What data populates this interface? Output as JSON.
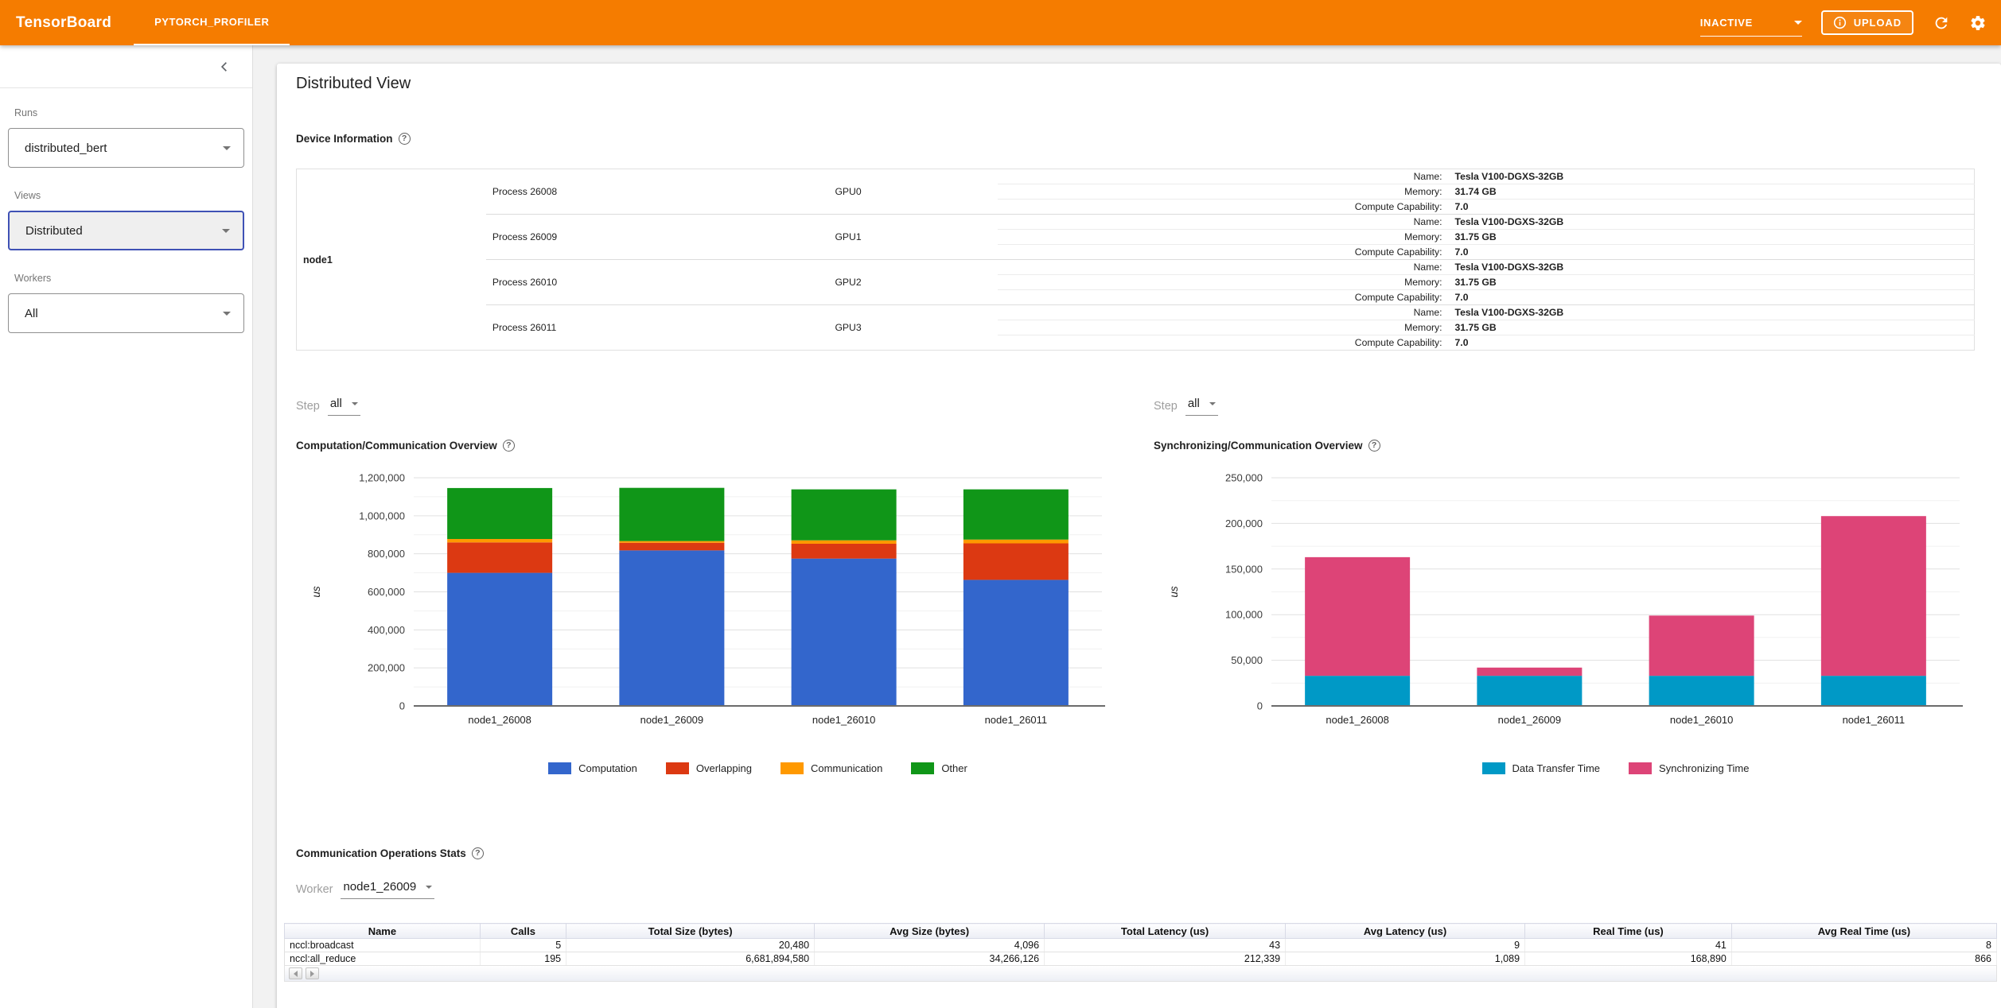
{
  "header": {
    "logo": "TensorBoard",
    "tab": "PYTORCH_PROFILER",
    "status": "INACTIVE",
    "upload_label": "UPLOAD"
  },
  "icons": {
    "help": "?"
  },
  "sidebar": {
    "runs_label": "Runs",
    "runs_value": "distributed_bert",
    "views_label": "Views",
    "views_value": "Distributed",
    "workers_label": "Workers",
    "workers_value": "All"
  },
  "main": {
    "title": "Distributed View",
    "device_info": {
      "heading": "Device Information",
      "node": "node1",
      "field_order": [
        "name",
        "memory",
        "compute_capability"
      ],
      "field_labels": {
        "name": "Name:",
        "memory": "Memory:",
        "compute_capability": "Compute Capability:"
      },
      "gpus": [
        {
          "process": "Process 26008",
          "gpu": "GPU0",
          "name": "Tesla V100-DGXS-32GB",
          "memory": "31.74 GB",
          "compute_capability": "7.0"
        },
        {
          "process": "Process 26009",
          "gpu": "GPU1",
          "name": "Tesla V100-DGXS-32GB",
          "memory": "31.75 GB",
          "compute_capability": "7.0"
        },
        {
          "process": "Process 26010",
          "gpu": "GPU2",
          "name": "Tesla V100-DGXS-32GB",
          "memory": "31.75 GB",
          "compute_capability": "7.0"
        },
        {
          "process": "Process 26011",
          "gpu": "GPU3",
          "name": "Tesla V100-DGXS-32GB",
          "memory": "31.75 GB",
          "compute_capability": "7.0"
        }
      ]
    },
    "step_label": "Step",
    "step_value": "all",
    "comm_ops": {
      "heading": "Communication Operations Stats",
      "worker_label": "Worker",
      "worker_value": "node1_26009",
      "columns": [
        "Name",
        "Calls",
        "Total Size (bytes)",
        "Avg Size (bytes)",
        "Total Latency (us)",
        "Avg Latency (us)",
        "Real Time (us)",
        "Avg Real Time (us)"
      ],
      "rows": [
        [
          "nccl:broadcast",
          "5",
          "20,480",
          "4,096",
          "43",
          "9",
          "41",
          "8"
        ],
        [
          "nccl:all_reduce",
          "195",
          "6,681,894,580",
          "34,266,126",
          "212,339",
          "1,089",
          "168,890",
          "866"
        ]
      ]
    }
  },
  "chart_data": [
    {
      "type": "bar",
      "stacked": true,
      "title": "Computation/Communication Overview",
      "categories": [
        "node1_26008",
        "node1_26009",
        "node1_26010",
        "node1_26011"
      ],
      "series": [
        {
          "name": "Computation",
          "color": "#3366cc",
          "values": [
            700000,
            818000,
            775000,
            663000
          ]
        },
        {
          "name": "Overlapping",
          "color": "#dc3912",
          "values": [
            160000,
            40000,
            78000,
            192000
          ]
        },
        {
          "name": "Communication",
          "color": "#ff9900",
          "values": [
            18000,
            9000,
            18000,
            20000
          ]
        },
        {
          "name": "Other",
          "color": "#109618",
          "values": [
            268000,
            280000,
            268000,
            264000
          ]
        }
      ],
      "xlabel": "",
      "ylabel": "us",
      "ylim": [
        0,
        1200000
      ],
      "ytick_step": 200000,
      "yminor_step": 100000,
      "grid": true,
      "legend_position": "bottom"
    },
    {
      "type": "bar",
      "stacked": true,
      "title": "Synchronizing/Communication Overview",
      "categories": [
        "node1_26008",
        "node1_26009",
        "node1_26010",
        "node1_26011"
      ],
      "series": [
        {
          "name": "Data Transfer Time",
          "color": "#0099c6",
          "values": [
            33000,
            33000,
            33000,
            33000
          ]
        },
        {
          "name": "Synchronizing Time",
          "color": "#dd4477",
          "values": [
            130000,
            9000,
            66000,
            175000
          ]
        }
      ],
      "xlabel": "",
      "ylabel": "us",
      "ylim": [
        0,
        250000
      ],
      "ytick_step": 50000,
      "yminor_step": 25000,
      "grid": true,
      "legend_position": "bottom"
    }
  ]
}
